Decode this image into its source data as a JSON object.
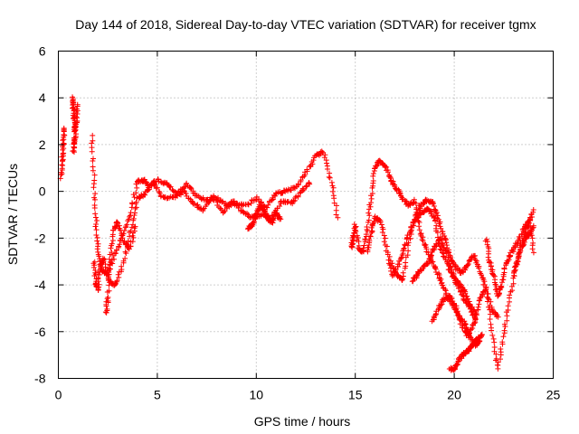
{
  "chart_data": {
    "type": "scatter",
    "title": "Day 144 of 2018, Sidereal Day-to-day VTEC variation (SDTVAR) for receiver tgmx",
    "xlabel": "GPS time / hours",
    "ylabel": "SDTVAR / TECUs",
    "xlim": [
      0,
      25
    ],
    "ylim": [
      -8,
      6
    ],
    "xticks": [
      0,
      5,
      10,
      15,
      20,
      25
    ],
    "yticks": [
      -8,
      -6,
      -4,
      -2,
      0,
      2,
      4,
      6
    ],
    "grid": true,
    "marker": "+",
    "series": [
      {
        "name": "SDTVAR",
        "color": "#ff0000",
        "tracks": [
          {
            "x": [
              0.15,
              0.2,
              0.25,
              0.3
            ],
            "y": [
              0.6,
              1.4,
              2.1,
              2.7
            ]
          },
          {
            "x": [
              0.7,
              0.75,
              0.8,
              0.85,
              0.9,
              0.95
            ],
            "y": [
              4.0,
              3.6,
              3.1,
              2.6,
              2.9,
              3.7
            ]
          },
          {
            "x": [
              0.75,
              0.8,
              0.85
            ],
            "y": [
              1.7,
              2.1,
              2.4
            ]
          },
          {
            "x": [
              1.7,
              1.8,
              1.9,
              2.0,
              2.2,
              2.5,
              2.8,
              3.2,
              3.6,
              4.0,
              4.3,
              4.6,
              5.0,
              5.5,
              6.0,
              6.5,
              7.0,
              7.5,
              8.0,
              8.5,
              9.0,
              9.5,
              10.0,
              10.5,
              11.0,
              11.5,
              12.0,
              12.5,
              13.0,
              13.4,
              13.8,
              14.1
            ],
            "y": [
              2.4,
              0.5,
              -1.3,
              -2.6,
              -3.4,
              -3.6,
              -2.8,
              -2.0,
              -1.0,
              0.4,
              0.5,
              0.2,
              0.5,
              0.3,
              -0.1,
              0.3,
              -0.2,
              -0.4,
              -0.3,
              -0.6,
              -0.5,
              -0.6,
              -0.3,
              -0.7,
              -0.1,
              0.0,
              0.2,
              0.8,
              1.5,
              1.7,
              0.4,
              -1.1
            ]
          },
          {
            "x": [
              1.8,
              1.9,
              2.0,
              2.1,
              2.3,
              2.6,
              2.9,
              3.3,
              3.7,
              4.0,
              4.4,
              4.8,
              5.2,
              5.8,
              6.3,
              6.8,
              7.3,
              7.8,
              8.3,
              8.8,
              9.3,
              9.8,
              10.3,
              10.8,
              11.3,
              11.8,
              12.3,
              12.7
            ],
            "y": [
              -3.0,
              -3.9,
              -4.2,
              -3.2,
              -2.9,
              -3.9,
              -4.0,
              -3.0,
              -1.5,
              -0.3,
              -0.1,
              0.4,
              -0.2,
              -0.3,
              0.0,
              -0.5,
              -0.8,
              -0.2,
              -0.9,
              -0.4,
              -0.9,
              -1.1,
              -1.0,
              -1.1,
              -0.4,
              -0.5,
              0.0,
              0.4
            ]
          },
          {
            "x": [
              2.4,
              2.5,
              2.6,
              2.8,
              3.0,
              3.3,
              3.6,
              3.9
            ],
            "y": [
              -5.2,
              -4.5,
              -3.0,
              -1.7,
              -1.3,
              -2.1,
              -2.5,
              -1.5
            ]
          },
          {
            "x": [
              9.6,
              9.8,
              10.0,
              10.2,
              10.4,
              10.6,
              10.8,
              11.0,
              11.2
            ],
            "y": [
              -1.6,
              -1.4,
              -1.0,
              -0.6,
              -0.8,
              -1.2,
              -1.3,
              -0.9,
              -1.2
            ]
          },
          {
            "x": [
              14.8,
              14.9,
              15.0,
              15.2,
              15.4,
              15.6,
              15.8,
              16.0,
              16.2,
              16.5,
              16.8,
              17.1,
              17.4,
              17.7,
              18.0,
              18.3,
              18.6,
              19.0,
              19.3,
              19.6,
              19.9,
              20.2,
              20.5,
              20.8,
              21.1,
              21.3
            ],
            "y": [
              -2.4,
              -2.0,
              -1.4,
              -2.5,
              -2.6,
              -1.6,
              -0.3,
              1.0,
              1.3,
              1.1,
              0.5,
              0.1,
              -0.3,
              -0.6,
              -0.4,
              -1.8,
              -2.5,
              -3.2,
              -3.8,
              -4.4,
              -4.8,
              -5.3,
              -5.6,
              -6.2,
              -6.6,
              -6.4
            ]
          },
          {
            "x": [
              15.6,
              15.8,
              16.0,
              16.3,
              16.6,
              16.9,
              17.2,
              17.5,
              17.8,
              18.1,
              18.4,
              18.7,
              19.0,
              19.3,
              19.6,
              19.9,
              20.2,
              20.5,
              20.8,
              21.1
            ],
            "y": [
              -2.6,
              -1.8,
              -1.1,
              -1.3,
              -2.5,
              -3.6,
              -3.1,
              -2.3,
              -1.6,
              -1.1,
              -0.9,
              -0.7,
              -1.2,
              -2.4,
              -3.0,
              -3.6,
              -3.9,
              -4.2,
              -4.8,
              -5.3
            ]
          },
          {
            "x": [
              16.8,
              17.1,
              17.4,
              17.7,
              18.0,
              18.3,
              18.6,
              18.9,
              19.2,
              19.5,
              19.8,
              20.1,
              20.4,
              20.7,
              21.0,
              21.3,
              21.6,
              21.9,
              22.2
            ],
            "y": [
              -3.0,
              -3.6,
              -3.8,
              -2.2,
              -1.1,
              -0.6,
              -0.4,
              -0.5,
              -1.2,
              -2.0,
              -2.8,
              -3.3,
              -3.5,
              -3.1,
              -2.7,
              -3.4,
              -4.2,
              -5.0,
              -5.4
            ]
          },
          {
            "x": [
              17.9,
              18.1,
              18.4,
              18.7,
              19.0,
              19.3,
              19.6,
              19.9,
              20.2,
              20.5,
              20.8,
              21.1
            ],
            "y": [
              -3.8,
              -3.6,
              -3.3,
              -3.0,
              -2.4,
              -2.0,
              -2.6,
              -3.5,
              -4.1,
              -4.6,
              -5.0,
              -5.6
            ]
          },
          {
            "x": [
              18.9,
              19.2,
              19.5,
              19.8,
              20.1,
              20.4,
              20.7,
              21.0,
              21.3,
              21.6,
              21.9,
              22.2,
              22.5,
              22.8,
              23.1,
              23.4,
              23.7,
              24.0
            ],
            "y": [
              -5.6,
              -5.0,
              -4.6,
              -4.5,
              -5.0,
              -5.8,
              -6.2,
              -5.6,
              -4.6,
              -4.2,
              -6.0,
              -7.6,
              -6.1,
              -4.6,
              -3.2,
              -2.2,
              -1.5,
              -0.8
            ]
          },
          {
            "x": [
              19.8,
              20.0,
              20.2,
              20.4,
              20.6,
              20.8,
              21.0,
              21.2,
              21.4
            ],
            "y": [
              -7.6,
              -7.6,
              -7.3,
              -7.0,
              -6.9,
              -6.7,
              -6.5,
              -6.3,
              -6.1
            ]
          },
          {
            "x": [
              21.6,
              21.8,
              22.0,
              22.2,
              22.4,
              22.6,
              22.9,
              23.2,
              23.5,
              23.8,
              24.0
            ],
            "y": [
              -2.0,
              -3.0,
              -3.6,
              -4.5,
              -4.0,
              -3.1,
              -2.6,
              -2.2,
              -1.6,
              -1.2,
              -2.6
            ]
          },
          {
            "x": [
              23.0,
              23.2,
              23.4,
              23.6,
              23.8,
              24.0
            ],
            "y": [
              -3.6,
              -3.0,
              -2.4,
              -2.0,
              -1.8,
              -1.5
            ]
          }
        ]
      }
    ]
  }
}
